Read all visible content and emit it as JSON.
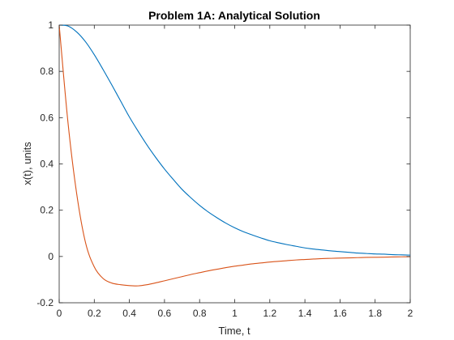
{
  "chart_data": {
    "type": "line",
    "title": "Problem 1A: Analytical Solution",
    "xlabel": "Time, t",
    "ylabel": "x(t), units",
    "xlim": [
      0,
      2
    ],
    "ylim": [
      -0.2,
      1
    ],
    "xticks": [
      0,
      0.2,
      0.4,
      0.6,
      0.8,
      1,
      1.2,
      1.4,
      1.6,
      1.8,
      2
    ],
    "xtick_labels": [
      "0",
      "0.2",
      "0.4",
      "0.6",
      "0.8",
      "1",
      "1.2",
      "1.4",
      "1.6",
      "1.8",
      "2"
    ],
    "yticks": [
      -0.2,
      0,
      0.2,
      0.4,
      0.6,
      0.8,
      1
    ],
    "ytick_labels": [
      "-0.2",
      "0",
      "0.2",
      "0.4",
      "0.6",
      "0.8",
      "1"
    ],
    "grid": false,
    "box": true,
    "legend": false,
    "x": [
      0,
      0.05,
      0.1,
      0.15,
      0.2,
      0.25,
      0.3,
      0.35,
      0.4,
      0.45,
      0.5,
      0.55,
      0.6,
      0.65,
      0.7,
      0.75,
      0.8,
      0.85,
      0.9,
      0.95,
      1.0,
      1.05,
      1.1,
      1.15,
      1.2,
      1.25,
      1.3,
      1.35,
      1.4,
      1.45,
      1.5,
      1.55,
      1.6,
      1.65,
      1.7,
      1.75,
      1.8,
      1.85,
      1.9,
      1.95,
      2.0
    ],
    "series": [
      {
        "color": "#0072BD",
        "values": [
          1.0,
          0.996,
          0.97,
          0.928,
          0.872,
          0.808,
          0.741,
          0.672,
          0.603,
          0.541,
          0.482,
          0.428,
          0.378,
          0.333,
          0.29,
          0.254,
          0.221,
          0.192,
          0.167,
          0.144,
          0.124,
          0.107,
          0.093,
          0.08,
          0.068,
          0.059,
          0.051,
          0.044,
          0.037,
          0.032,
          0.028,
          0.024,
          0.021,
          0.018,
          0.015,
          0.013,
          0.011,
          0.01,
          0.008,
          0.007,
          0.006
        ]
      },
      {
        "color": "#D95319",
        "values": [
          1.0,
          0.58,
          0.27,
          0.06,
          -0.045,
          -0.095,
          -0.115,
          -0.122,
          -0.126,
          -0.127,
          -0.122,
          -0.114,
          -0.105,
          -0.096,
          -0.087,
          -0.078,
          -0.07,
          -0.062,
          -0.055,
          -0.048,
          -0.042,
          -0.037,
          -0.032,
          -0.028,
          -0.024,
          -0.021,
          -0.018,
          -0.015,
          -0.013,
          -0.011,
          -0.009,
          -0.008,
          -0.007,
          -0.006,
          -0.005,
          -0.004,
          -0.0035,
          -0.003,
          -0.002,
          -0.0015,
          -0.001
        ]
      }
    ]
  }
}
